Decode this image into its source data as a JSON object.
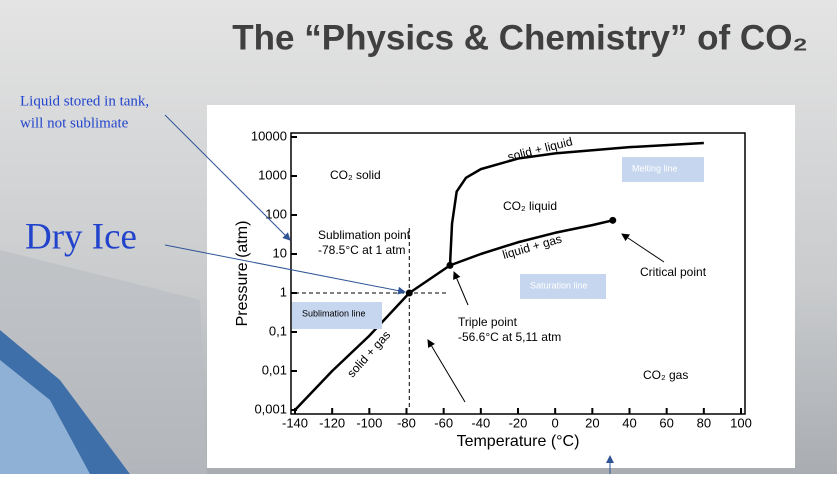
{
  "slide_title": "The “Physics & Chemistry” of CO₂",
  "callouts": [
    "Liquid stored in tank,",
    "will not sublimate",
    "Dry Ice"
  ],
  "chart_data": {
    "type": "line",
    "x_label": "Temperature (°C)",
    "y_label": "Pressure (atm)",
    "log_y": true,
    "xlim": [
      -140,
      100
    ],
    "ylim": [
      0.001,
      10000
    ],
    "xticks": [
      -140,
      -120,
      -100,
      -80,
      -60,
      -40,
      -20,
      0,
      20,
      40,
      60,
      80,
      100
    ],
    "yticks": [
      10000,
      1000,
      100,
      10,
      1,
      {
        "value": 0.1,
        "label": "0,1"
      },
      {
        "value": 0.01,
        "label": "0,01"
      },
      {
        "value": 0.001,
        "label": "0,001"
      }
    ],
    "series": [
      {
        "color": "#000000",
        "x": [
          -140,
          -120,
          -100,
          -78.5,
          -56.6
        ],
        "values": [
          0.001,
          0.01,
          0.08,
          1,
          5.11
        ]
      },
      {
        "color": "#000000",
        "x": [
          -56.6,
          -40,
          -20,
          0,
          20,
          31
        ],
        "values": [
          5.11,
          10,
          20,
          35,
          55,
          73
        ]
      },
      {
        "color": "#000000",
        "x": [
          -56.6,
          -55.5,
          -53,
          -48,
          -40,
          -20,
          0,
          40,
          80
        ],
        "values": [
          5.11,
          60,
          400,
          900,
          1500,
          2800,
          3800,
          5500,
          7000
        ]
      }
    ],
    "markers": {
      "x": [
        -78.5,
        -56.6,
        31
      ],
      "values": [
        1,
        5.11,
        73
      ]
    },
    "annotations": [
      "CO₂ solid",
      "solid + liquid",
      "CO₂ liquid",
      "liquid + gas",
      "solid + gas",
      "Sublimation point",
      "-78.5°C at 1 atm",
      "Triple point",
      "-56.6°C at 5,11 atm",
      "Critical point",
      "CO₂ gas",
      "Melting line",
      "Saturation line",
      "Sublimation line"
    ]
  }
}
